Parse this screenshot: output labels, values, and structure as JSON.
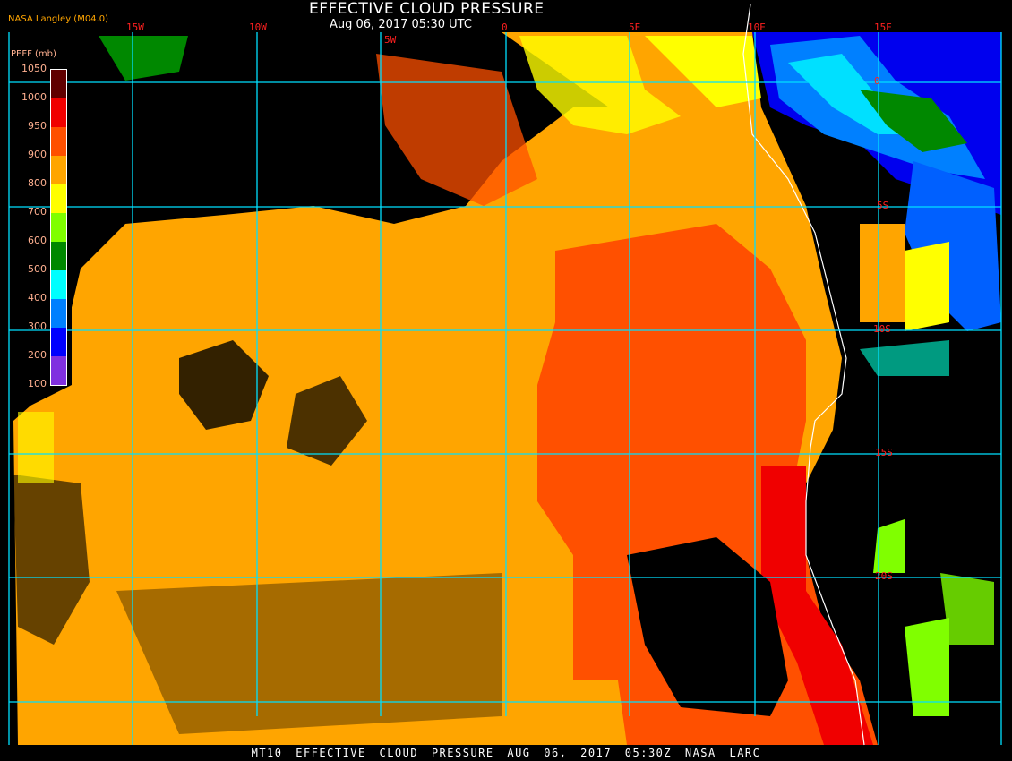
{
  "title": "EFFECTIVE CLOUD PRESSURE",
  "subtitle": "Aug 06, 2017 05:30 UTC",
  "credit": "NASA Langley (M04.0)",
  "legend": {
    "label": "PEFF (mb)",
    "ticks": [
      "1050",
      "1000",
      "950",
      "900",
      "800",
      "700",
      "600",
      "500",
      "400",
      "300",
      "200",
      "100"
    ],
    "colors": [
      "#600000",
      "#f00000",
      "#ff5000",
      "#ffa500",
      "#ffff00",
      "#80ff00",
      "#008800",
      "#00ffff",
      "#0080ff",
      "#0000ff",
      "#8030e0"
    ]
  },
  "grid": {
    "longitudes": [
      "15W",
      "10W",
      "5W",
      "0",
      "5E",
      "10E",
      "15E"
    ],
    "latitudes": [
      "0",
      "5S",
      "10S",
      "15S",
      "20S"
    ],
    "line_color": "#00e0ff"
  },
  "footer": "MT10  EFFECTIVE CLOUD PRESSURE   AUG 06, 2017 05:30Z   NASA LARC"
}
